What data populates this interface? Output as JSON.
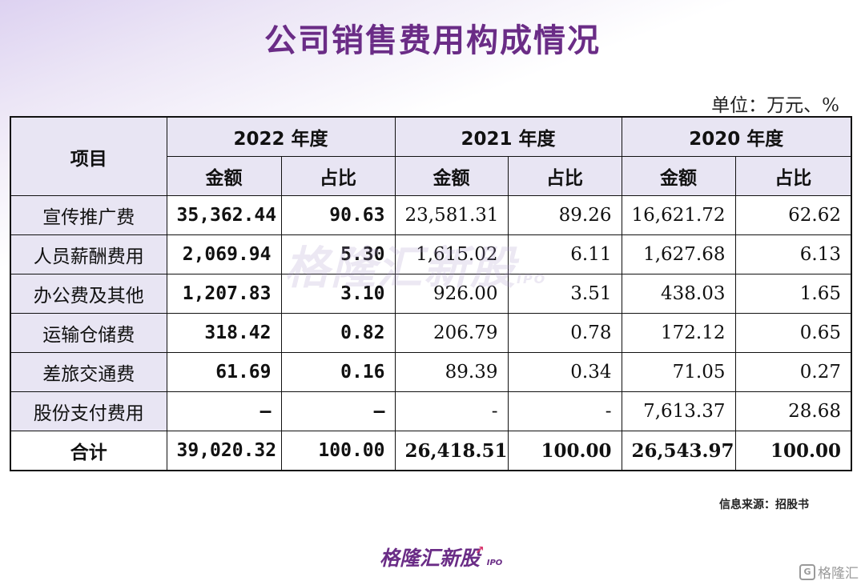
{
  "title": "公司销售费用构成情况",
  "unit": "单位：万元、%",
  "table": {
    "item_header": "项目",
    "years": [
      "2022 年度",
      "2021 年度",
      "2020 年度"
    ],
    "sub_headers": [
      "金额",
      "占比",
      "金额",
      "占比",
      "金额",
      "占比"
    ],
    "rows": [
      {
        "item": "宣传推广费",
        "values": [
          "35,362.44",
          "90.63",
          "23,581.31",
          "89.26",
          "16,621.72",
          "62.62"
        ]
      },
      {
        "item": "人员薪酬费用",
        "values": [
          "2,069.94",
          "5.30",
          "1,615.02",
          "6.11",
          "1,627.68",
          "6.13"
        ]
      },
      {
        "item": "办公费及其他",
        "values": [
          "1,207.83",
          "3.10",
          "926.00",
          "3.51",
          "438.03",
          "1.65"
        ]
      },
      {
        "item": "运输仓储费",
        "values": [
          "318.42",
          "0.82",
          "206.79",
          "0.78",
          "172.12",
          "0.65"
        ]
      },
      {
        "item": "差旅交通费",
        "values": [
          "61.69",
          "0.16",
          "89.39",
          "0.34",
          "71.05",
          "0.27"
        ]
      },
      {
        "item": "股份支付费用",
        "values": [
          "–",
          "–",
          "-",
          "-",
          "7,613.37",
          "28.68"
        ]
      }
    ],
    "total": {
      "item": "合计",
      "values": [
        "39,020.32",
        "100.00",
        "26,418.51",
        "100.00",
        "26,543.97",
        "100.00"
      ]
    }
  },
  "watermark": {
    "text": "格隆汇新股",
    "suffix": "IPO"
  },
  "source": "信息来源：招股书",
  "logo": {
    "text": "格隆汇新股",
    "suffix": "IPO"
  },
  "corner_brand": {
    "icon": "G",
    "text": "格隆汇"
  }
}
